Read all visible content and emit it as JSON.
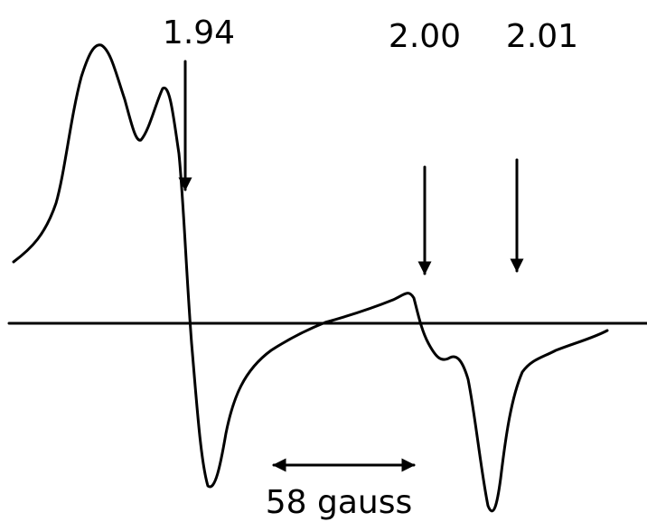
{
  "annotations": [
    {
      "label": "1.94"
    },
    {
      "label": "2.00"
    },
    {
      "label": "2.01"
    }
  ],
  "scale_bar": {
    "label": "58 gauss"
  }
}
